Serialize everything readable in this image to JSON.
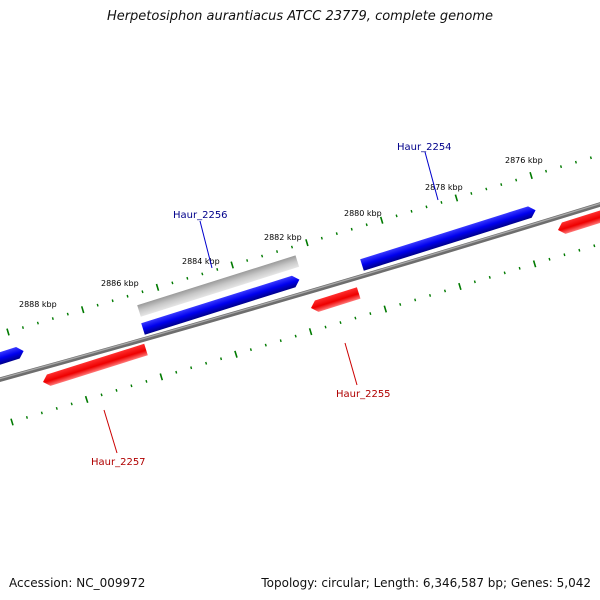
{
  "title": "Herpetosiphon aurantiacus ATCC 23779, complete genome",
  "footer": {
    "accession": "Accession: NC_009972",
    "info": "Topology: circular; Length: 6,346,587 bp; Genes: 5,042"
  },
  "colors": {
    "forward": "#0000ee",
    "reverse": "#ee0000",
    "pseudo": "#aaaaaa",
    "tick": "#007a00",
    "backbone": "#808080",
    "label_forward": "#00008b",
    "label_reverse": "#b00000"
  },
  "scale_labels": [
    "2876 kbp",
    "2878 kbp",
    "2880 kbp",
    "2882 kbp",
    "2884 kbp",
    "2886 kbp",
    "2888 kbp"
  ],
  "gene_labels": [
    {
      "name": "Haur_2254",
      "strand": "forward"
    },
    {
      "name": "Haur_2256",
      "strand": "forward"
    },
    {
      "name": "Haur_2255",
      "strand": "reverse"
    },
    {
      "name": "Haur_2257",
      "strand": "reverse"
    }
  ]
}
